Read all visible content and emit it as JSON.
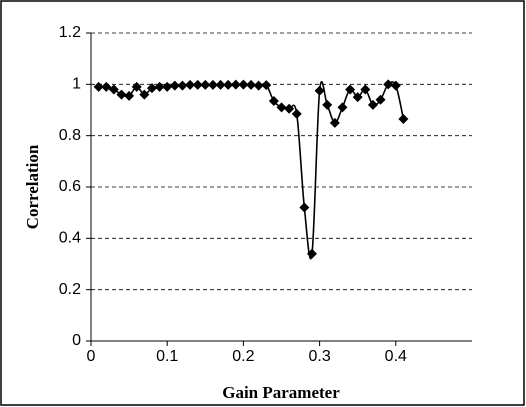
{
  "chart_data": {
    "type": "line",
    "x": [
      0.01,
      0.02,
      0.03,
      0.04,
      0.05,
      0.06,
      0.07,
      0.08,
      0.09,
      0.1,
      0.11,
      0.12,
      0.13,
      0.14,
      0.15,
      0.16,
      0.17,
      0.18,
      0.19,
      0.2,
      0.21,
      0.22,
      0.23,
      0.24,
      0.25,
      0.26,
      0.27,
      0.28,
      0.29,
      0.3,
      0.31,
      0.32,
      0.33,
      0.34,
      0.35,
      0.36,
      0.37,
      0.38,
      0.39,
      0.4,
      0.41
    ],
    "values": [
      0.99,
      0.99,
      0.98,
      0.96,
      0.955,
      0.99,
      0.96,
      0.985,
      0.99,
      0.99,
      0.995,
      0.995,
      0.998,
      0.998,
      0.998,
      0.998,
      0.998,
      0.998,
      0.999,
      0.999,
      0.998,
      0.995,
      0.997,
      0.935,
      0.91,
      0.905,
      0.885,
      0.52,
      0.34,
      0.975,
      0.92,
      0.85,
      0.91,
      0.98,
      0.95,
      0.98,
      0.92,
      0.94,
      1.0,
      0.995,
      0.865
    ],
    "color": "#000000",
    "x_label": "Gain Parameter",
    "y_label": "Correlation",
    "xlim": [
      0,
      0.5
    ],
    "xticks": [
      0,
      0.1,
      0.2,
      0.3,
      0.4
    ],
    "ylim": [
      0,
      1.2
    ],
    "yticks": [
      0,
      0.2,
      0.4,
      0.6,
      0.8,
      1,
      1.2
    ],
    "grid": true
  }
}
